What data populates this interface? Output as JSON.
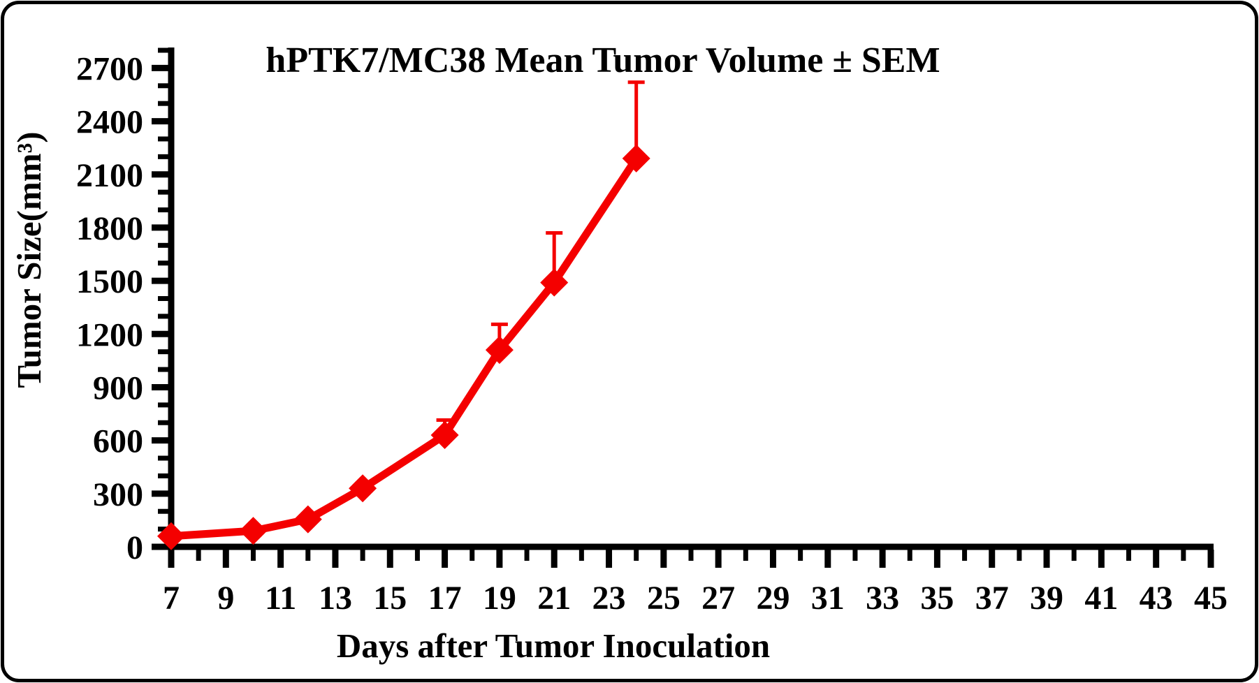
{
  "frame": {
    "background_color": "#ffffff",
    "border_color": "#000000"
  },
  "colors": {
    "series_red": "#f40000",
    "axis_black": "#000000",
    "text_black": "#000000",
    "background": "#ffffff"
  },
  "chart_data": {
    "type": "line",
    "title": "hPTK7/MC38 Mean Tumor Volume ± SEM",
    "xlabel": "Days after Tumor Inoculation",
    "ylabel": "Tumor Size(mm³)",
    "grid": false,
    "legend": "none",
    "error_bars": "upper SEM caps only",
    "x_axis": {
      "min": 7,
      "max": 45,
      "minor_tick_step": 1,
      "labeled_tick_step": 2,
      "tick_labels": [
        7,
        9,
        11,
        13,
        15,
        17,
        19,
        21,
        23,
        25,
        27,
        29,
        31,
        33,
        35,
        37,
        39,
        41,
        43,
        45
      ]
    },
    "y_axis": {
      "min": 0,
      "max": 2800,
      "major_tick_step": 300,
      "minor_tick_step": 100,
      "tick_labels": [
        0,
        300,
        600,
        900,
        1200,
        1500,
        1800,
        2100,
        2400,
        2700
      ]
    },
    "series": [
      {
        "name": "hPTK7/MC38 mean tumor volume",
        "color": "#f40000",
        "marker": "diamond",
        "x_days": [
          7,
          10,
          12,
          14,
          17,
          19,
          21,
          24
        ],
        "mean_mm3": [
          60,
          90,
          155,
          330,
          630,
          1110,
          1490,
          2190
        ],
        "sem_upper_mm3": [
          0,
          0,
          0,
          0,
          85,
          145,
          280,
          430
        ]
      }
    ]
  }
}
